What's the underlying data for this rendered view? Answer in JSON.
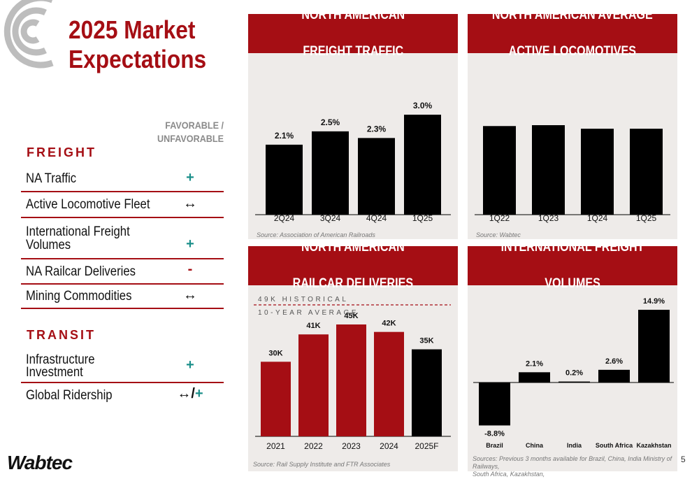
{
  "title_line1": "2025 Market",
  "title_line2": "Expectations",
  "fav_header_line1": "FAVORABLE /",
  "fav_header_line2": "UNFAVORABLE",
  "freight_label": "FREIGHT",
  "transit_label": "TRANSIT",
  "freight_rows": [
    {
      "label": "NA Traffic",
      "symbol": "+",
      "symbol_color": "#1b8f8a"
    },
    {
      "label": "Active Locomotive Fleet",
      "symbol": "↔",
      "symbol_color": "#111111"
    },
    {
      "label": "International Freight Volumes",
      "label_line1": "International Freight",
      "label_line2": "Volumes",
      "symbol": "+",
      "symbol_color": "#1b8f8a"
    },
    {
      "label": "NA Railcar Deliveries",
      "symbol": "-",
      "symbol_color": "#a50e14"
    },
    {
      "label": "Mining Commodities",
      "symbol": "↔",
      "symbol_color": "#111111"
    }
  ],
  "transit_rows": [
    {
      "label_line1": "Infrastructure",
      "label_line2": "Investment",
      "symbol": "+",
      "symbol_color": "#1b8f8a"
    },
    {
      "label": "Global Ridership",
      "symbol_a": "↔/",
      "symbol_b": "+",
      "symbol_color": "#1b8f8a"
    }
  ],
  "colors": {
    "accent": "#a50e14",
    "teal": "#1b8f8a",
    "bar_black": "#000000",
    "bar_red": "#a50e14",
    "panel_bg": "#eeebe9"
  },
  "chart_data": [
    {
      "type": "bar",
      "title_line1": "NORTH AMERICAN",
      "title_line2": "FREIGHT TRAFFIC",
      "categories": [
        "2Q24",
        "3Q24",
        "4Q24",
        "1Q25"
      ],
      "values": [
        2.1,
        2.5,
        2.3,
        3.0
      ],
      "value_labels": [
        "2.1%",
        "2.5%",
        "2.3%",
        "3.0%"
      ],
      "source": "Source: Association of American Railroads",
      "ylim": [
        0,
        3.5
      ]
    },
    {
      "type": "bar",
      "title_line1": "NORTH AMERICAN AVERAGE",
      "title_line2": "ACTIVE LOCOMOTIVES",
      "categories": [
        "1Q22",
        "1Q23",
        "1Q24",
        "1Q25"
      ],
      "values": [
        100,
        101,
        97,
        97
      ],
      "source": "Source: Wabtec",
      "ylim": [
        0,
        120
      ]
    },
    {
      "type": "bar",
      "title_line1": "NORTH AMERICAN",
      "title_line2": "RAILCAR DELIVERIES",
      "categories": [
        "2021",
        "2022",
        "2023",
        "2024",
        "2025F"
      ],
      "values": [
        30,
        41,
        45,
        42,
        35
      ],
      "value_labels": [
        "30K",
        "41K",
        "45K",
        "42K",
        "35K"
      ],
      "bar_colors": [
        "#a50e14",
        "#a50e14",
        "#a50e14",
        "#a50e14",
        "#000000"
      ],
      "reference_line": {
        "value": 49,
        "label_line1": "49K HISTORICAL",
        "label_line2": "10-YEAR AVERAGE"
      },
      "source": "Source: Rail Supply Institute and FTR Associates",
      "ylim": [
        0,
        55
      ]
    },
    {
      "type": "bar",
      "title_line1": "INTERNATIONAL FREIGHT",
      "title_line2": "VOLUMES",
      "categories": [
        "Brazil",
        "China",
        "India",
        "South Africa",
        "Kazakhstan"
      ],
      "values": [
        -8.8,
        2.1,
        0.2,
        2.6,
        14.9
      ],
      "value_labels": [
        "-8.8%",
        "2.1%",
        "0.2%",
        "2.6%",
        "14.9%"
      ],
      "source_line1": "Sources: Previous 3 months available for Brazil, China, India Ministry of Railways,",
      "source_line2": "South Africa, Kazakhstan,",
      "ylim": [
        -11,
        17
      ]
    }
  ],
  "wabtec_logo": "Wabtec",
  "page_number": "5"
}
